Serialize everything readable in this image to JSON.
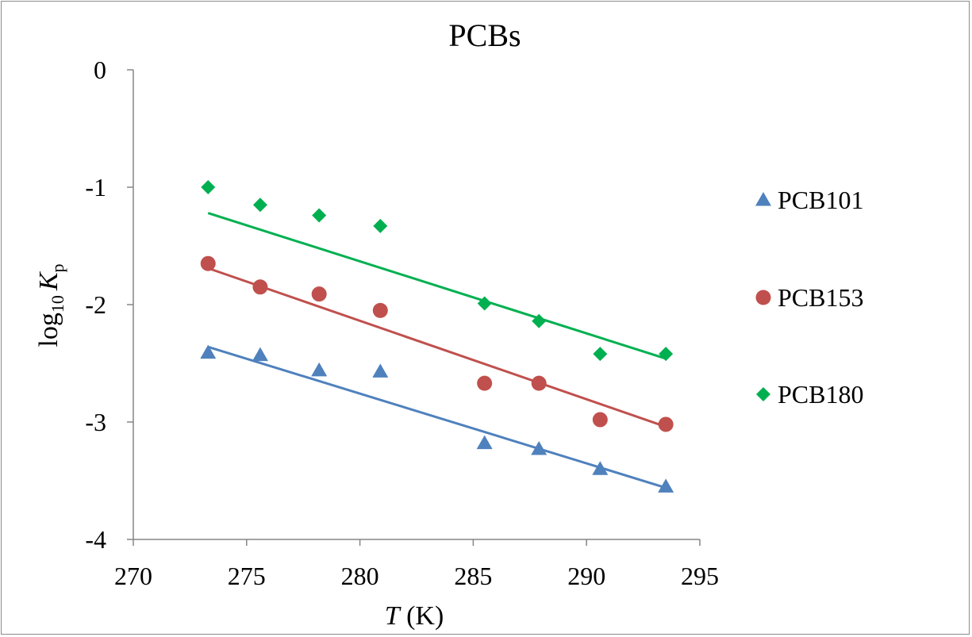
{
  "chart_data": {
    "type": "scatter",
    "title": "PCBs",
    "xlabel": {
      "var": "T",
      "unit": " (K)"
    },
    "ylabel": {
      "base": "log",
      "sub": "10",
      "var": "K",
      "varsub": "p"
    },
    "xlim": [
      270,
      295
    ],
    "ylim": [
      -4,
      0
    ],
    "xticks": [
      270,
      275,
      280,
      285,
      290,
      295
    ],
    "yticks": [
      0,
      -1,
      -2,
      -3,
      -4
    ],
    "grid": false,
    "legend": "right",
    "series": [
      {
        "name": "PCB101",
        "marker": "triangle",
        "color": "#4f81bd",
        "x": [
          273.3,
          275.6,
          278.2,
          280.9,
          285.5,
          287.9,
          290.6,
          293.5
        ],
        "y": [
          -2.41,
          -2.43,
          -2.56,
          -2.57,
          -3.18,
          -3.23,
          -3.4,
          -3.55
        ],
        "trendline": [
          [
            273.3,
            -2.36
          ],
          [
            293.5,
            -3.56
          ]
        ]
      },
      {
        "name": "PCB153",
        "marker": "circle",
        "color": "#c0504d",
        "x": [
          273.3,
          275.6,
          278.2,
          280.9,
          285.5,
          287.9,
          290.6,
          293.5
        ],
        "y": [
          -1.65,
          -1.85,
          -1.91,
          -2.05,
          -2.67,
          -2.67,
          -2.98,
          -3.02
        ],
        "trendline": [
          [
            273.3,
            -1.69
          ],
          [
            293.5,
            -3.04
          ]
        ]
      },
      {
        "name": "PCB180",
        "marker": "diamond",
        "color": "#00b050",
        "x": [
          273.3,
          275.6,
          278.2,
          280.9,
          285.5,
          287.9,
          290.6,
          293.5
        ],
        "y": [
          -1.0,
          -1.15,
          -1.24,
          -1.33,
          -1.99,
          -2.14,
          -2.42,
          -2.42
        ],
        "trendline": [
          [
            273.3,
            -1.22
          ],
          [
            293.5,
            -2.46
          ]
        ]
      }
    ]
  }
}
